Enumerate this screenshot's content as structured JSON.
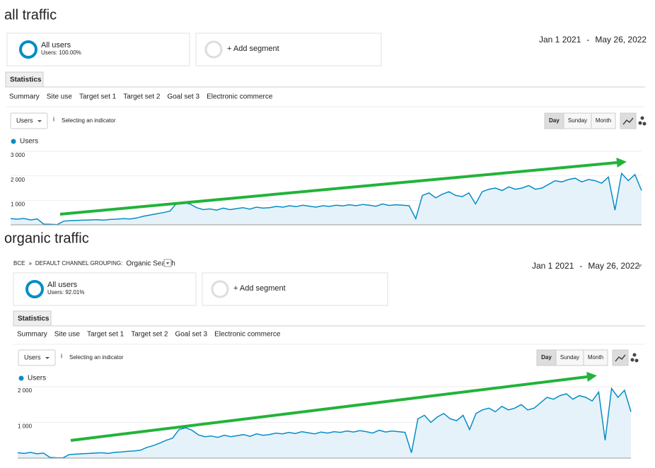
{
  "panels": [
    {
      "heading": "all traffic",
      "segments": [
        {
          "name": "All users",
          "detail": "Users: 100.00%"
        },
        {
          "name": "+ Add segment"
        }
      ],
      "date": [
        "Jan 1 2021",
        "-",
        "May 26, 2022"
      ],
      "tab": "Statistics",
      "subtabs": [
        "Summary",
        "Site use",
        "Target set 1",
        "Target set 2",
        "Goal set 3",
        "Electronic commerce"
      ],
      "metric": "Users",
      "info": "i",
      "indicator_link": "Selecting an indicator",
      "granularity": [
        "Day",
        "Sunday",
        "Month"
      ],
      "chart": {
        "type": "line",
        "legend": "Users",
        "color": "#058dc7",
        "ylim": [
          0,
          3000
        ],
        "yticks": [
          {
            "value": 1000,
            "label": "1 000"
          },
          {
            "value": 2000,
            "label": "2 000"
          },
          {
            "value": 3000,
            "label": "3 000"
          }
        ],
        "values": [
          250,
          230,
          260,
          200,
          240,
          30,
          20,
          10,
          150,
          170,
          180,
          190,
          200,
          210,
          190,
          220,
          230,
          250,
          240,
          280,
          350,
          400,
          450,
          500,
          560,
          880,
          900,
          850,
          700,
          620,
          650,
          600,
          680,
          620,
          660,
          700,
          640,
          720,
          680,
          700,
          750,
          720,
          780,
          740,
          800,
          760,
          720,
          780,
          750,
          800,
          770,
          820,
          780,
          830,
          800,
          760,
          850,
          790,
          820,
          800,
          780,
          250,
          1200,
          1300,
          1100,
          1250,
          1350,
          1200,
          1150,
          1300,
          850,
          1350,
          1450,
          1500,
          1400,
          1550,
          1450,
          1500,
          1600,
          1450,
          1500,
          1650,
          1800,
          1750,
          1850,
          1900,
          1750,
          1850,
          1800,
          1700,
          1950,
          600,
          2100,
          1800,
          2050,
          1400
        ]
      }
    },
    {
      "heading": "organic traffic",
      "breadcrumb": [
        "BCE",
        "»",
        "DEFAULT CHANNEL GROUPING:",
        "Organic Search"
      ],
      "segments": [
        {
          "name": "All users",
          "detail": "Users: 92.01%"
        },
        {
          "name": "+ Add segment"
        }
      ],
      "date": [
        "Jan 1 2021",
        "-",
        "May 26, 2022"
      ],
      "tab": "Statistics",
      "subtabs": [
        "Summary",
        "Site use",
        "Target set 1",
        "Target set 2",
        "Goal set 3",
        "Electronic commerce"
      ],
      "metric": "Users",
      "info": "i",
      "indicator_link": "Selecting an indicator",
      "granularity": [
        "Day",
        "Sunday",
        "Month"
      ],
      "chart": {
        "type": "line",
        "legend": "Users",
        "color": "#058dc7",
        "ylim": [
          0,
          2000
        ],
        "yticks": [
          {
            "value": 1000,
            "label": "1 000"
          },
          {
            "value": 2000,
            "label": "2 000"
          }
        ],
        "values": [
          150,
          130,
          160,
          120,
          140,
          20,
          10,
          5,
          100,
          110,
          120,
          130,
          140,
          150,
          130,
          160,
          170,
          190,
          200,
          220,
          300,
          350,
          420,
          500,
          560,
          800,
          850,
          780,
          650,
          600,
          620,
          580,
          640,
          600,
          630,
          660,
          610,
          680,
          640,
          660,
          700,
          680,
          720,
          690,
          740,
          710,
          680,
          730,
          700,
          740,
          720,
          760,
          730,
          770,
          740,
          700,
          780,
          730,
          760,
          740,
          720,
          150,
          1100,
          1200,
          1000,
          1150,
          1250,
          1100,
          1050,
          1200,
          800,
          1250,
          1350,
          1400,
          1300,
          1450,
          1350,
          1400,
          1500,
          1350,
          1400,
          1550,
          1700,
          1650,
          1750,
          1800,
          1650,
          1750,
          1700,
          1600,
          1850,
          500,
          1950,
          1700,
          1900,
          1300
        ]
      }
    }
  ]
}
